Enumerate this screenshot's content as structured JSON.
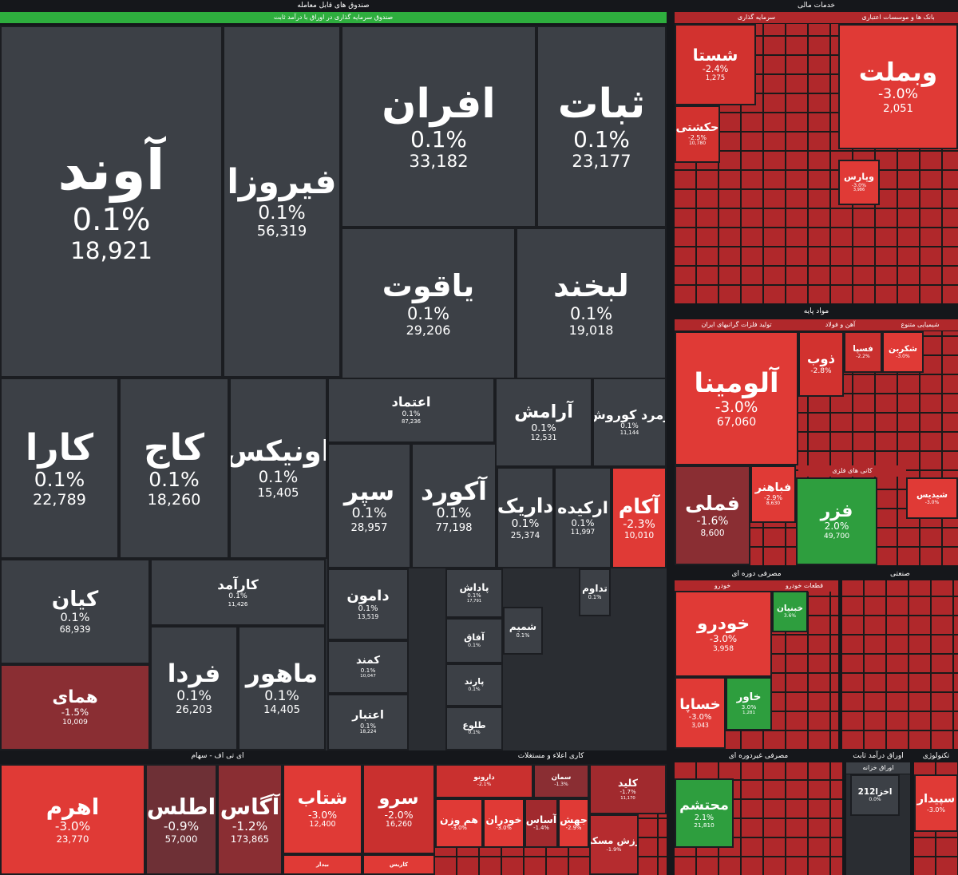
{
  "sections": [
    {
      "title": "صندوق های قابل معامله",
      "subtitles": [
        "صندوق سرمایه گذاری در اوراق با درآمد ثابت"
      ],
      "tiles": [
        {
          "name": "آوند",
          "change": "0.1%",
          "value": "18,921",
          "color": "#3c4046"
        },
        {
          "name": "فیروزا",
          "change": "0.1%",
          "value": "56,319",
          "color": "#3c4046"
        },
        {
          "name": "افران",
          "change": "0.1%",
          "value": "33,182",
          "color": "#3c4046"
        },
        {
          "name": "ثبات",
          "change": "0.1%",
          "value": "23,177",
          "color": "#3c4046"
        },
        {
          "name": "یاقوت",
          "change": "0.1%",
          "value": "29,206",
          "color": "#3c4046"
        },
        {
          "name": "لبخند",
          "change": "0.1%",
          "value": "19,018",
          "color": "#3c4046"
        },
        {
          "name": "کارا",
          "change": "0.1%",
          "value": "22,789",
          "color": "#3c4046"
        },
        {
          "name": "کاج",
          "change": "0.1%",
          "value": "18,260",
          "color": "#3c4046"
        },
        {
          "name": "اونیکس",
          "change": "0.1%",
          "value": "15,405",
          "color": "#3c4046"
        },
        {
          "name": "اعتماد",
          "change": "0.1%",
          "value": "87,236",
          "color": "#3c4046"
        },
        {
          "name": "آرامش",
          "change": "0.1%",
          "value": "12,531",
          "color": "#3c4046"
        },
        {
          "name": "زمرد کوروش",
          "change": "0.1%",
          "value": "11,144",
          "color": "#3c4046"
        },
        {
          "name": "سپر",
          "change": "0.1%",
          "value": "28,957",
          "color": "#3c4046"
        },
        {
          "name": "آکورد",
          "change": "0.1%",
          "value": "77,198",
          "color": "#3c4046"
        },
        {
          "name": "داریک",
          "change": "0.1%",
          "value": "25,374",
          "color": "#3c4046"
        },
        {
          "name": "ارکیده",
          "change": "0.1%",
          "value": "11,997",
          "color": "#3c4046"
        },
        {
          "name": "آکام",
          "change": "-2.3%",
          "value": "10,010",
          "color": "#e03a36"
        },
        {
          "name": "کیان",
          "change": "0.1%",
          "value": "68,939",
          "color": "#3c4046"
        },
        {
          "name": "کارآمد",
          "change": "0.1%",
          "value": "11,426",
          "color": "#3c4046"
        },
        {
          "name": "همای",
          "change": "-1.5%",
          "value": "10,009",
          "color": "#8a2e33"
        },
        {
          "name": "فردا",
          "change": "0.1%",
          "value": "26,203",
          "color": "#3c4046"
        },
        {
          "name": "ماهور",
          "change": "0.1%",
          "value": "14,405",
          "color": "#3c4046"
        },
        {
          "name": "دامون",
          "change": "0.1%",
          "value": "13,519",
          "color": "#3c4046"
        },
        {
          "name": "کمند",
          "change": "0.1%",
          "value": "10,047",
          "color": "#3c4046"
        },
        {
          "name": "اعتبار",
          "change": "0.1%",
          "value": "18,224",
          "color": "#3c4046"
        },
        {
          "name": "پاداش",
          "change": "0.1%",
          "value": "17,791",
          "color": "#3c4046"
        },
        {
          "name": "آفاق",
          "change": "0.1%",
          "color": "#3c4046"
        },
        {
          "name": "پارند",
          "change": "0.1%",
          "color": "#3c4046"
        },
        {
          "name": "طلوع",
          "change": "0.1%",
          "color": "#3c4046"
        },
        {
          "name": "شمیم",
          "change": "0.1%",
          "color": "#3c4046"
        },
        {
          "name": "تداوم",
          "change": "0.1%",
          "color": "#3c4046"
        }
      ]
    },
    {
      "title": "ای تی اف - سهام",
      "tiles": [
        {
          "name": "اهرم",
          "change": "-3.0%",
          "value": "23,770",
          "color": "#e03a36"
        },
        {
          "name": "اطلس",
          "change": "-0.9%",
          "value": "57,000",
          "color": "#6e3036"
        },
        {
          "name": "آگاس",
          "change": "-1.2%",
          "value": "173,865",
          "color": "#8a2e33"
        },
        {
          "name": "شتاب",
          "change": "-3.0%",
          "value": "12,400",
          "color": "#e03a36"
        },
        {
          "name": "سرو",
          "change": "-2.0%",
          "value": "16,260",
          "color": "#c9302f"
        },
        {
          "name": "بیدار",
          "color": "#e03a36"
        },
        {
          "name": "کاریس",
          "color": "#e03a36"
        }
      ]
    },
    {
      "title": "کاری اعلاء و مستغلات",
      "tiles": [
        {
          "name": "کلید",
          "change": "-1.7%",
          "value": "11,170",
          "color": "#a12a2e"
        },
        {
          "name": "ارزش مسکن",
          "change": "-1.9%",
          "color": "#b52c2f"
        },
        {
          "name": "هم وزن",
          "change": "-3.0%",
          "color": "#e03a36"
        },
        {
          "name": "خودران",
          "change": "-3.0%",
          "color": "#e03a36"
        },
        {
          "name": "آساس",
          "change": "-1.4%",
          "color": "#a12a2e"
        },
        {
          "name": "جهش",
          "change": "-2.9%",
          "color": "#e03a36"
        },
        {
          "name": "سمان",
          "change": "-1.3%",
          "color": "#8a2e33"
        },
        {
          "name": "دارونو",
          "change": "-2.1%",
          "color": "#c9302f"
        }
      ]
    },
    {
      "title": "خدمات مالی",
      "subtitles": [
        "سرمایه گذاری",
        "بانک ها و موسسات اعتباری"
      ],
      "tiles": [
        {
          "name": "شستا",
          "change": "-2.4%",
          "value": "1,275",
          "color": "#d2322f"
        },
        {
          "name": "وبملت",
          "change": "-3.0%",
          "value": "2,051",
          "color": "#e03a36"
        },
        {
          "name": "حکشتی",
          "change": "-2.5%",
          "value": "10,780",
          "color": "#d2322f"
        },
        {
          "name": "وپارس",
          "change": "-3.0%",
          "value": "3,986",
          "color": "#e03a36"
        }
      ]
    },
    {
      "title": "مواد پایه",
      "subtitles": [
        "تولید فلزات گرانبهای ایران",
        "آهن و فولاد",
        "شیمیایی متنوع",
        "کانی های فلزی"
      ],
      "tiles": [
        {
          "name": "آلومینا",
          "change": "-3.0%",
          "value": "67,060",
          "color": "#e03a36"
        },
        {
          "name": "فملی",
          "change": "-1.6%",
          "value": "8,600",
          "color": "#8a2e33"
        },
        {
          "name": "فزر",
          "change": "2.0%",
          "value": "49,700",
          "color": "#2e9e3e"
        },
        {
          "name": "فباهنر",
          "change": "-2.9%",
          "value": "8,630",
          "color": "#e03a36"
        },
        {
          "name": "ذوب",
          "change": "-2.8%",
          "color": "#d2322f"
        },
        {
          "name": "فسپا",
          "change": "-2.2%",
          "color": "#c9302f"
        },
        {
          "name": "شکربن",
          "change": "-3.0%",
          "color": "#e03a36"
        },
        {
          "name": "شیدیس",
          "change": "-3.0%",
          "color": "#e03a36"
        }
      ]
    },
    {
      "title": "مصرفی دوره ای",
      "subtitles": [
        "خودرو",
        "قطعات خودرو"
      ],
      "tiles": [
        {
          "name": "خودرو",
          "change": "-3.0%",
          "value": "3,958",
          "color": "#e03a36"
        },
        {
          "name": "خساپا",
          "change": "-3.0%",
          "value": "3,043",
          "color": "#e03a36"
        },
        {
          "name": "خاور",
          "change": "3.0%",
          "value": "1,281",
          "color": "#2e9e3e"
        },
        {
          "name": "خبنیان",
          "change": "3.6%",
          "color": "#2e9e3e"
        }
      ]
    },
    {
      "title": "صنعتی",
      "tiles": []
    },
    {
      "title": "مصرفی غیردوره ای",
      "tiles": [
        {
          "name": "محتشم",
          "change": "2.1%",
          "value": "21,810",
          "color": "#2e9e3e"
        }
      ]
    },
    {
      "title": "اوراق درآمد ثابت",
      "subtitles": [
        "اوراق خزانه"
      ],
      "tiles": [
        {
          "name": "اخزا212",
          "change": "0.0%",
          "color": "#3c4046"
        }
      ]
    },
    {
      "title": "تکنولوژی",
      "tiles": [
        {
          "name": "سپیدار",
          "change": "-3.0%",
          "color": "#e03a36"
        }
      ]
    }
  ]
}
